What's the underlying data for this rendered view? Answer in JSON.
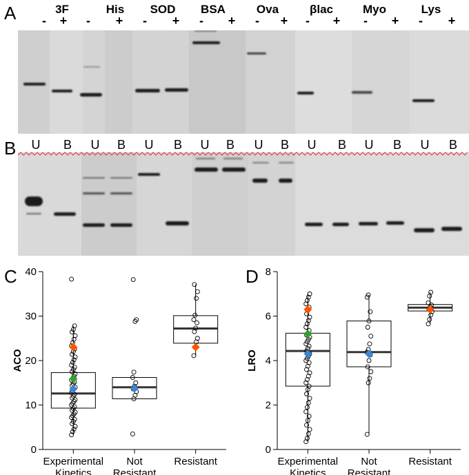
{
  "panels": {
    "a": "A",
    "b": "B",
    "c": "C",
    "d": "D"
  },
  "gel_a": {
    "proteins": [
      "3F",
      "His",
      "SOD",
      "BSA",
      "Ova",
      "βlac",
      "Myo",
      "Lys"
    ],
    "minus": "-",
    "plus": "+"
  },
  "gel_b": {
    "unbound": "U",
    "bound": "B"
  },
  "chart_data": [
    {
      "type": "box",
      "panel": "C",
      "ylabel": "ACO",
      "categories": [
        "Experimental\nKinetics",
        "Not\nResistant",
        "Resistant"
      ],
      "ylim": [
        0,
        40
      ],
      "yticks": [
        0,
        10,
        20,
        30,
        40
      ],
      "grid": false,
      "boxes": [
        {
          "q1": 9.3,
          "median": 12.6,
          "q3": 17.3,
          "whisker_low": 3.3,
          "whisker_high": 27.8
        },
        {
          "q1": 11.4,
          "median": 14.0,
          "q3": 16.2,
          "whisker_low": 11.4,
          "whisker_high": 16.2
        },
        {
          "q1": 23.9,
          "median": 27.2,
          "q3": 30.1,
          "whisker_low": 21.1,
          "whisker_high": 37.1
        }
      ],
      "points": [
        [
          3.3,
          4.0,
          4.6,
          5.2,
          5.8,
          6.3,
          6.8,
          7.2,
          7.6,
          8.0,
          8.4,
          8.8,
          9.2,
          9.6,
          10.0,
          10.4,
          10.8,
          11.2,
          11.6,
          12.0,
          12.4,
          12.8,
          13.2,
          13.6,
          14.0,
          14.4,
          14.8,
          15.2,
          15.6,
          16.0,
          16.5,
          17.0,
          17.5,
          18.0,
          18.5,
          19.0,
          19.6,
          20.2,
          20.8,
          21.4,
          22.0,
          22.6,
          23.3,
          24.0,
          24.8,
          25.6,
          26.4,
          27.0,
          27.8,
          38.3
        ],
        [
          3.5,
          11.4,
          12.2,
          13.0,
          13.6,
          14.2,
          15.0,
          16.2,
          17.4,
          28.8,
          29.2,
          38.2
        ],
        [
          21.1,
          23.0,
          24.2,
          25.0,
          26.5,
          27.3,
          28.5,
          29.2,
          30.2,
          34.0,
          35.5,
          37.1
        ]
      ],
      "highlights": [
        {
          "category": 0,
          "value": 23.0,
          "color": "#ff5500"
        },
        {
          "category": 0,
          "value": 15.9,
          "color": "#33a02c"
        },
        {
          "category": 0,
          "value": 13.6,
          "color": "#3a86d6"
        },
        {
          "category": 1,
          "value": 13.7,
          "color": "#3a86d6"
        },
        {
          "category": 2,
          "value": 23.0,
          "color": "#ff5500"
        }
      ]
    },
    {
      "type": "box",
      "panel": "D",
      "ylabel": "LRO",
      "categories": [
        "Experimental\nKinetics",
        "Not\nResistant",
        "Resistant"
      ],
      "ylim": [
        0,
        8
      ],
      "yticks": [
        0,
        2,
        4,
        6,
        8
      ],
      "grid": false,
      "boxes": [
        {
          "q1": 2.85,
          "median": 4.43,
          "q3": 5.23,
          "whisker_low": 0.35,
          "whisker_high": 7.0
        },
        {
          "q1": 3.72,
          "median": 4.38,
          "q3": 5.78,
          "whisker_low": 0.68,
          "whisker_high": 6.95
        },
        {
          "q1": 6.23,
          "median": 6.38,
          "q3": 6.52,
          "whisker_low": 5.65,
          "whisker_high": 7.07
        }
      ],
      "points": [
        [
          0.35,
          0.5,
          0.7,
          0.9,
          1.1,
          1.3,
          1.5,
          1.7,
          1.9,
          2.1,
          2.3,
          2.5,
          2.7,
          2.85,
          3.0,
          3.15,
          3.3,
          3.45,
          3.6,
          3.75,
          3.9,
          4.0,
          4.1,
          4.2,
          4.3,
          4.43,
          4.55,
          4.65,
          4.75,
          4.85,
          4.95,
          5.05,
          5.15,
          5.23,
          5.35,
          5.5,
          5.65,
          5.8,
          5.95,
          6.1,
          6.25,
          6.4,
          6.55,
          6.7,
          6.85,
          7.0
        ],
        [
          0.68,
          3.0,
          3.2,
          3.5,
          3.72,
          4.0,
          4.25,
          4.38,
          4.5,
          4.75,
          5.1,
          5.5,
          5.78,
          6.2,
          6.85,
          6.95
        ],
        [
          5.65,
          5.85,
          6.05,
          6.2,
          6.3,
          6.4,
          6.5,
          6.6,
          6.9,
          7.07
        ]
      ],
      "highlights": [
        {
          "category": 0,
          "value": 6.3,
          "color": "#ff5500"
        },
        {
          "category": 0,
          "value": 5.2,
          "color": "#33a02c"
        },
        {
          "category": 0,
          "value": 4.3,
          "color": "#3a86d6"
        },
        {
          "category": 1,
          "value": 4.3,
          "color": "#3a86d6"
        },
        {
          "category": 2,
          "value": 6.3,
          "color": "#ff5500"
        }
      ]
    }
  ]
}
